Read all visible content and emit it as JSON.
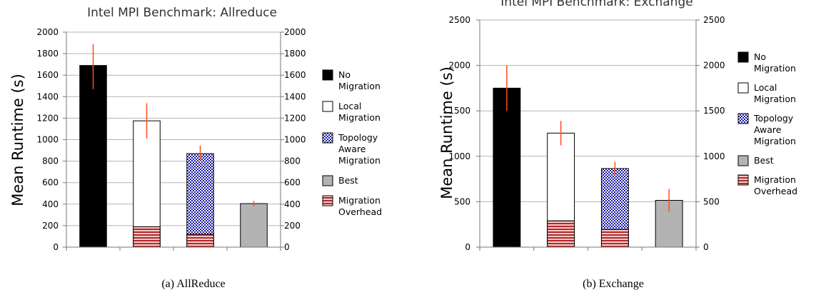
{
  "chart_data": [
    {
      "type": "bar",
      "title": "Intel MPI Benchmark: Allreduce",
      "ylabel": "Mean Runtime (s)",
      "caption": "(a)  AllReduce",
      "ylim": [
        0,
        2000
      ],
      "yticks": [
        "0",
        "200",
        "400",
        "600",
        "800",
        "1000",
        "1200",
        "1400",
        "1600",
        "1800",
        "2000"
      ],
      "ytick_values": [
        0,
        200,
        400,
        600,
        800,
        1000,
        1200,
        1400,
        1600,
        1800,
        2000
      ],
      "grid": true,
      "legend_position": "right",
      "categories": [
        "No Migration",
        "Local Migration",
        "Topology Aware Migration",
        "Best"
      ],
      "values": [
        1690,
        1175,
        870,
        405
      ],
      "overhead": [
        0,
        190,
        120,
        0
      ],
      "error": [
        [
          1470,
          1890
        ],
        [
          1010,
          1340
        ],
        [
          800,
          945
        ],
        [
          380,
          430
        ]
      ]
    },
    {
      "type": "bar",
      "title": "Intel MPI Benchmark: Exchange",
      "ylabel": "Mean Runtime (s)",
      "caption": "(b)  Exchange",
      "ylim": [
        0,
        2500
      ],
      "yticks": [
        "0",
        "500",
        "1000",
        "1500",
        "2000",
        "2500"
      ],
      "ytick_values": [
        0,
        500,
        1000,
        1500,
        2000,
        2500
      ],
      "grid": true,
      "legend_position": "right",
      "categories": [
        "No Migration",
        "Local Migration",
        "Topology Aware Migration",
        "Best"
      ],
      "values": [
        1750,
        1255,
        865,
        515
      ],
      "overhead": [
        0,
        290,
        195,
        0
      ],
      "error": [
        [
          1500,
          2000
        ],
        [
          1120,
          1390
        ],
        [
          790,
          940
        ],
        [
          390,
          640
        ]
      ]
    }
  ],
  "legend": [
    {
      "name": "No Migration",
      "lines": [
        "No",
        "Migration"
      ],
      "style": "solid",
      "color": "#000000"
    },
    {
      "name": "Local Migration",
      "lines": [
        "Local",
        "Migration"
      ],
      "style": "white",
      "color": "#ffffff"
    },
    {
      "name": "Topology Aware Migration",
      "lines": [
        "Topology",
        "Aware",
        "Migration"
      ],
      "style": "checker",
      "color": "#1a1aa0"
    },
    {
      "name": "Best",
      "lines": [
        "Best"
      ],
      "style": "gray",
      "color": "#b3b3b3"
    },
    {
      "name": "Migration Overhead",
      "lines": [
        "Migration",
        "Overhead"
      ],
      "style": "stripes",
      "color": "#cc3333"
    }
  ],
  "colors": {
    "grid": "#b3b3b3",
    "error_bar": "#ff4d1a",
    "bar_outline": "#000000",
    "checker": "#1a1aa0",
    "stripe": "#cc3333",
    "best": "#b3b3b3"
  }
}
